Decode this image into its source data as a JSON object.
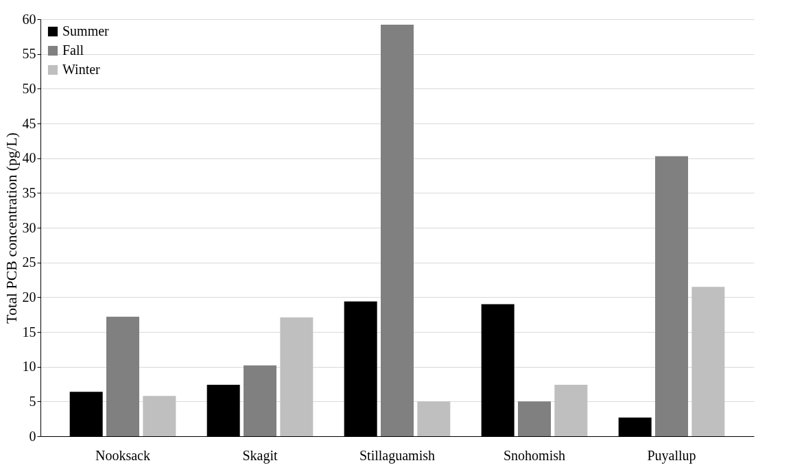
{
  "chart_data": {
    "type": "bar",
    "ylabel": "Total PCB concentration (pg/L)",
    "categories": [
      "Nooksack",
      "Skagit",
      "Stillaguamish",
      "Snohomish",
      "Puyallup"
    ],
    "series": [
      {
        "name": "Summer",
        "color": "#000000",
        "values": [
          6.4,
          7.4,
          19.4,
          19.0,
          2.7
        ]
      },
      {
        "name": "Fall",
        "color": "#808080",
        "values": [
          17.2,
          10.2,
          59.2,
          5.0,
          40.3
        ]
      },
      {
        "name": "Winter",
        "color": "#bfbfbf",
        "values": [
          5.8,
          17.1,
          5.0,
          7.4,
          21.5
        ]
      }
    ],
    "ylim": [
      0,
      60
    ],
    "yticks": [
      0,
      5,
      10,
      15,
      20,
      25,
      30,
      35,
      40,
      45,
      50,
      55,
      60
    ],
    "grid": "y",
    "legend": "top left"
  }
}
